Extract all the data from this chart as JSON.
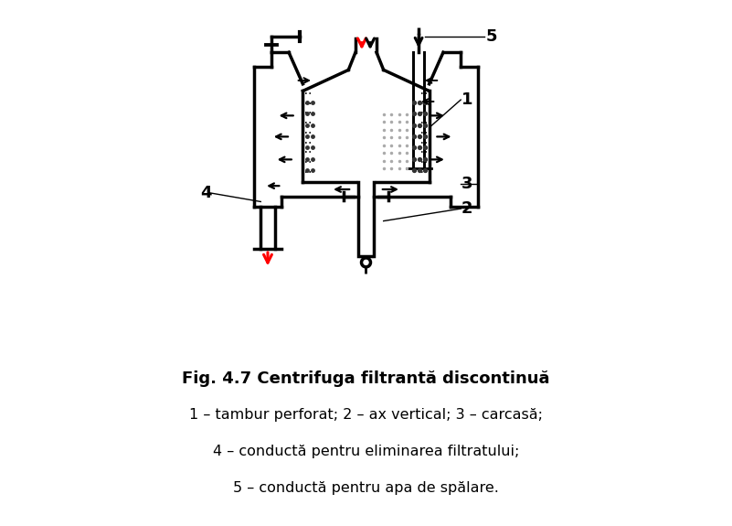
{
  "title_bold": "Fig. 4.7 Centrifuga filtrantă discontinuă",
  "line1": "1 – tambur perforat; 2 – ax vertical; 3 – carcasă;",
  "line2": "4 – conductă pentru eliminarea filtratului;",
  "line3": "5 – conductă pentru apa de spălare.",
  "bg_color": "#ffffff",
  "text_color": "#000000",
  "red_color": "#ff0000",
  "lw": 2.5,
  "fig_width": 8.01,
  "fig_height": 5.75
}
